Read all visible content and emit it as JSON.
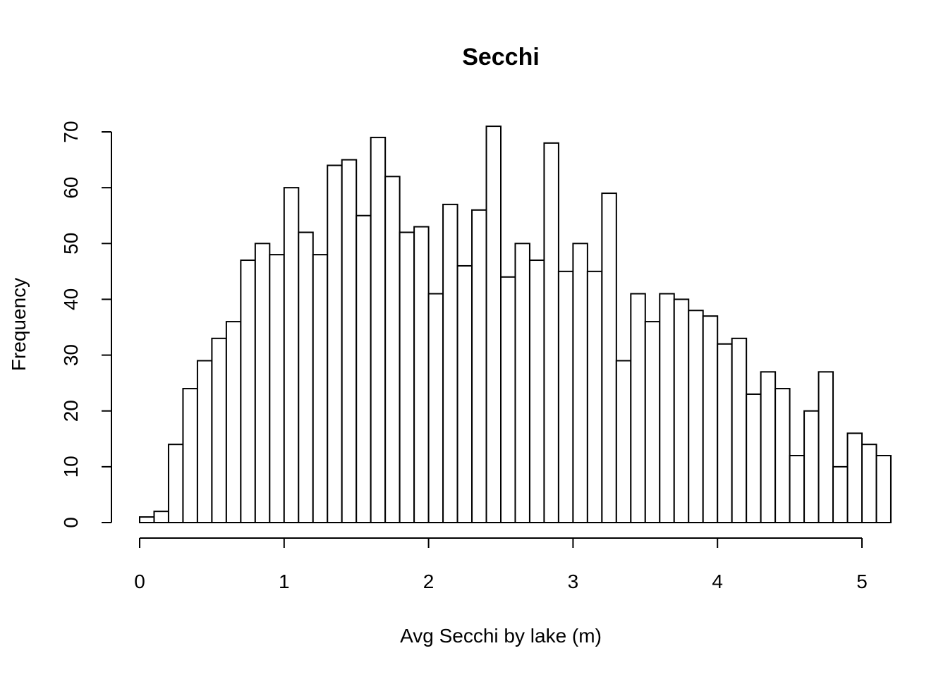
{
  "chart_data": {
    "type": "bar",
    "title": "Secchi",
    "xlabel": "Avg Secchi by lake (m)",
    "ylabel": "Frequency",
    "bin_width": 0.1,
    "bin_start": 0,
    "values": [
      1,
      2,
      14,
      24,
      29,
      33,
      36,
      47,
      50,
      48,
      60,
      52,
      48,
      64,
      65,
      55,
      69,
      62,
      52,
      53,
      41,
      57,
      46,
      56,
      71,
      44,
      50,
      47,
      68,
      45,
      50,
      45,
      59,
      29,
      41,
      36,
      41,
      40,
      38,
      37,
      32,
      33,
      23,
      27,
      24,
      12,
      20,
      27,
      10,
      16,
      14,
      12
    ],
    "xlim": [
      0,
      5.2
    ],
    "ylim": [
      0,
      70
    ],
    "x_ticks": [
      "0",
      "1",
      "2",
      "3",
      "4",
      "5"
    ],
    "y_ticks": [
      "0",
      "10",
      "20",
      "30",
      "40",
      "50",
      "60",
      "70"
    ],
    "grid": false,
    "bar_fill": "#ffffff",
    "bar_stroke": "#000000"
  }
}
